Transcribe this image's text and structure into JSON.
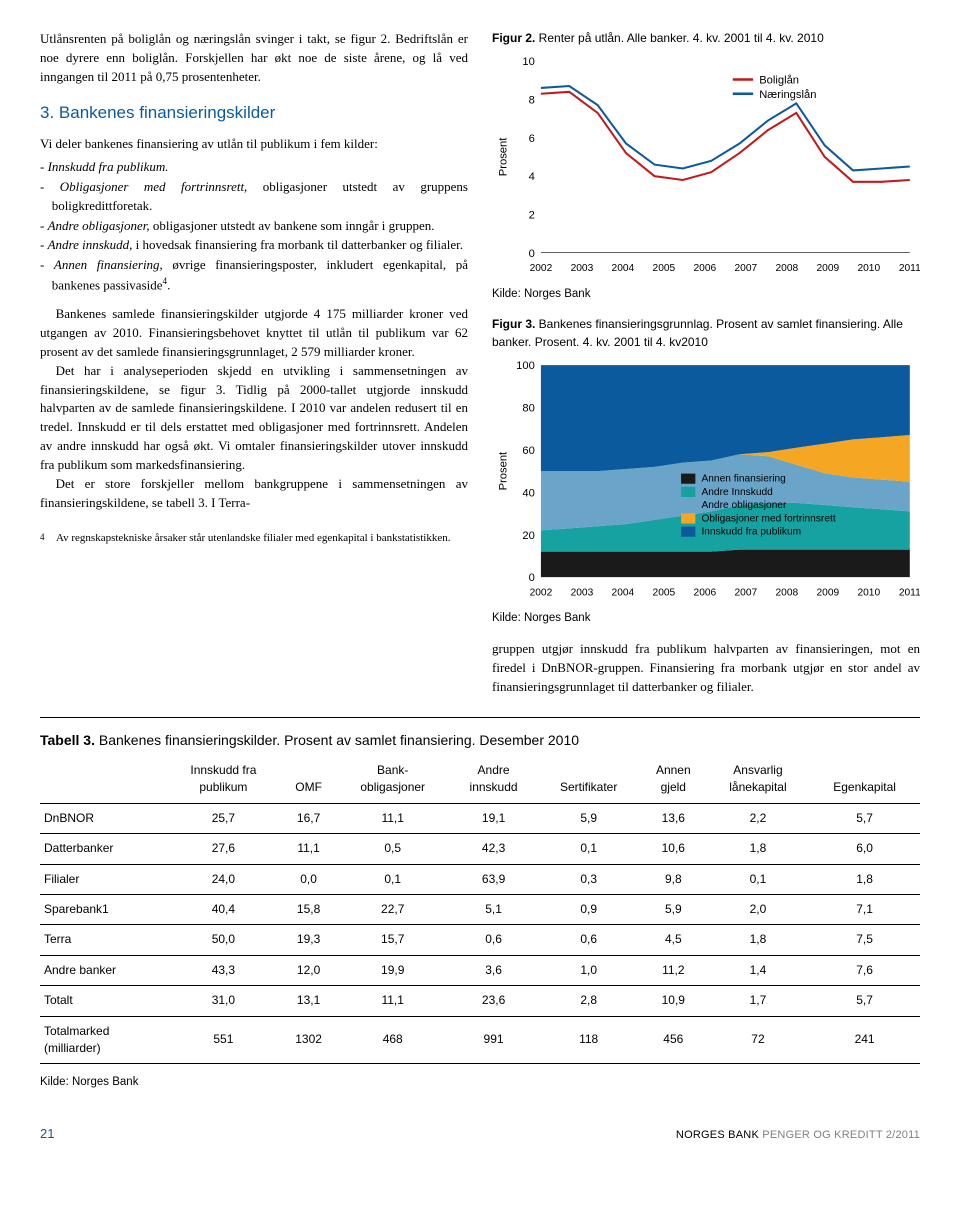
{
  "text": {
    "intro_p1": "Utlånsrenten på boliglån og næringslån svinger i takt, se figur 2. Bedriftslån er noe dyrere enn boliglån. Forskjellen har økt noe de siste årene, og lå ved inngangen til 2011 på 0,75 prosentenheter.",
    "section3_title": "3. Bankenes finansieringskilder",
    "sec3_p1": "Vi deler bankenes finansiering av utlån til publikum i fem kilder:",
    "li1_em": "Innskudd fra publikum.",
    "li2_em": "Obligasjoner med fortrinnsrett,",
    "li2_rest": " obligasjoner utstedt av gruppens boligkredittforetak.",
    "li3_em": "Andre obligasjoner,",
    "li3_rest": " obligasjoner utstedt av bankene som inngår i gruppen.",
    "li4_em": "Andre innskudd,",
    "li4_rest": " i hovedsak finansiering fra morbank til datterbanker og filialer.",
    "li5_em": "Annen finansiering,",
    "li5_rest": " øvrige finansieringsposter, inkludert egenkapital, på bankenes passivaside",
    "sec3_p2a": "Bankenes samlede finansieringskilder utgjorde 4 175 milliarder kroner ved utgangen av 2010. Finansieringsbehovet knyttet til utlån til publikum var 62 prosent av det samlede finansieringsgrunnlaget, 2 579 milliarder kroner.",
    "sec3_p2b": "Det har i analyseperioden skjedd en utvikling i sammensetningen av finansieringskildene, se figur 3. Tidlig på 2000-tallet utgjorde innskudd halvparten av de samlede finansieringskildene. I 2010 var andelen redusert til en tredel. Innskudd er til dels erstattet med obligasjoner med fortrinnsrett. Andelen av andre innskudd har også økt. Vi omtaler finansieringskilder utover innskudd fra publikum som markedsfinansiering.",
    "sec3_p2c": "Det er store forskjeller mellom bankgruppene i sammensetningen av finansieringskildene, se tabell 3. I Terra-",
    "right_tail": "gruppen utgjør innskudd fra publikum halvparten av finansieringen, mot en firedel i DnBNOR-gruppen. Finansiering fra morbank utgjør en stor andel av finansieringsgrunnlaget til datterbanker og filialer.",
    "footnote_num": "4",
    "footnote_text": "Av regnskapstekniske årsaker står utenlandske filialer med egenkapital i bankstatistikken.",
    "table3_title_bold": "Tabell 3.",
    "table3_title_rest": " Bankenes finansieringskilder. Prosent av samlet finansiering. Desember 2010",
    "table3_source": "Kilde: Norges Bank",
    "page_num": "21",
    "publication": "NORGES BANK",
    "publication_grey": " PENGER OG KREDITT 2/2011"
  },
  "fig2": {
    "caption_bold": "Figur 2.",
    "caption_rest": " Renter på utlån. Alle banker. 4. kv. 2001 til 4. kv. 2010",
    "ylabel": "Prosent",
    "yticks": [
      0,
      2,
      4,
      6,
      8,
      10
    ],
    "xticks": [
      2002,
      2003,
      2004,
      2005,
      2006,
      2007,
      2008,
      2009,
      2010,
      2011
    ],
    "series": [
      {
        "name": "Boliglån",
        "color": "#c21a1a",
        "values": [
          8.3,
          8.4,
          7.3,
          5.2,
          4.0,
          3.8,
          4.2,
          5.2,
          6.4,
          7.3,
          5.0,
          3.7,
          3.7,
          3.8
        ]
      },
      {
        "name": "Næringslån",
        "color": "#0b5a9e",
        "values": [
          8.6,
          8.7,
          7.7,
          5.7,
          4.6,
          4.4,
          4.8,
          5.7,
          6.9,
          7.8,
          5.6,
          4.3,
          4.4,
          4.5
        ]
      }
    ],
    "source": "Kilde: Norges Bank",
    "background": "#ffffff"
  },
  "fig3": {
    "caption_bold": "Figur 3.",
    "caption_rest": " Bankenes finansieringsgrunnlag. Prosent av samlet finansiering. Alle banker. Prosent. 4. kv. 2001 til 4. kv2010",
    "ylabel": "Prosent",
    "yticks": [
      0,
      20,
      40,
      60,
      80,
      100
    ],
    "xticks": [
      2002,
      2003,
      2004,
      2005,
      2006,
      2007,
      2008,
      2009,
      2010,
      2011
    ],
    "layers": [
      {
        "name": "Annen finansiering",
        "color": "#1a1a1a",
        "values": [
          12,
          12,
          12,
          12,
          12,
          12,
          12,
          13,
          13,
          13,
          13,
          13,
          13,
          13
        ]
      },
      {
        "name": "Andre Innskudd",
        "color": "#17a2a2",
        "values": [
          10,
          11,
          12,
          13,
          15,
          17,
          19,
          21,
          22,
          22,
          21,
          20,
          19,
          18
        ]
      },
      {
        "name": "Andre obligasjoner",
        "color": "#6aa4c9",
        "values": [
          28,
          27,
          26,
          26,
          25,
          25,
          24,
          24,
          22,
          18,
          15,
          14,
          14,
          14
        ]
      },
      {
        "name": "Obligasjoner med fortrinnsrett",
        "color": "#f5a623",
        "values": [
          0,
          0,
          0,
          0,
          0,
          0,
          0,
          0,
          2,
          8,
          14,
          18,
          20,
          22
        ]
      },
      {
        "name": "Innskudd fra publikum",
        "color": "#0b5a9e",
        "values": [
          50,
          50,
          50,
          49,
          48,
          46,
          45,
          42,
          41,
          39,
          37,
          35,
          34,
          33
        ]
      }
    ],
    "source": "Kilde: Norges Bank"
  },
  "table3": {
    "columns": [
      "",
      "Innskudd fra publikum",
      "OMF",
      "Bank-obligasjoner",
      "Andre innskudd",
      "Sertifikater",
      "Annen gjeld",
      "Ansvarlig lånekapital",
      "Egenkapital"
    ],
    "rows": [
      [
        "DnBNOR",
        "25,7",
        "16,7",
        "11,1",
        "19,1",
        "5,9",
        "13,6",
        "2,2",
        "5,7"
      ],
      [
        "Datterbanker",
        "27,6",
        "11,1",
        "0,5",
        "42,3",
        "0,1",
        "10,6",
        "1,8",
        "6,0"
      ],
      [
        "Filialer",
        "24,0",
        "0,0",
        "0,1",
        "63,9",
        "0,3",
        "9,8",
        "0,1",
        "1,8"
      ],
      [
        "Sparebank1",
        "40,4",
        "15,8",
        "22,7",
        "5,1",
        "0,9",
        "5,9",
        "2,0",
        "7,1"
      ],
      [
        "Terra",
        "50,0",
        "19,3",
        "15,7",
        "0,6",
        "0,6",
        "4,5",
        "1,8",
        "7,5"
      ],
      [
        "Andre banker",
        "43,3",
        "12,0",
        "19,9",
        "3,6",
        "1,0",
        "11,2",
        "1,4",
        "7,6"
      ],
      [
        "Totalt",
        "31,0",
        "13,1",
        "11,1",
        "23,6",
        "2,8",
        "10,9",
        "1,7",
        "5,7"
      ],
      [
        "Totalmarked (milliarder)",
        "551",
        "1302",
        "468",
        "991",
        "118",
        "456",
        "72",
        "241"
      ]
    ]
  }
}
